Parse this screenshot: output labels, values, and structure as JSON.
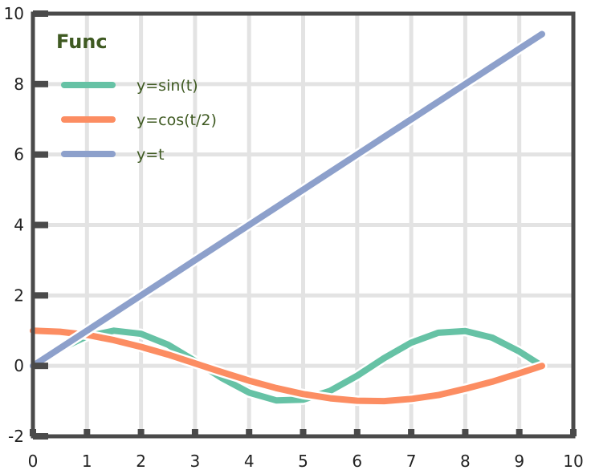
{
  "chart_data": {
    "type": "line",
    "title": "",
    "xlabel": "",
    "ylabel": "",
    "xlim": [
      0,
      10
    ],
    "ylim": [
      -2,
      10
    ],
    "xticks": [
      0,
      1,
      2,
      3,
      4,
      5,
      6,
      7,
      8,
      9,
      10
    ],
    "yticks": [
      -2,
      0,
      2,
      4,
      6,
      8,
      10
    ],
    "grid": true,
    "legend": {
      "title": "Func",
      "position": "top-left"
    },
    "x": [
      0,
      0.5,
      1,
      1.5,
      2,
      2.5,
      3,
      3.5,
      4,
      4.5,
      5,
      5.5,
      6,
      6.5,
      7,
      7.5,
      8,
      8.5,
      9,
      9.42
    ],
    "series": [
      {
        "name": "y=sin(t)",
        "color": "#66c2a5",
        "values": [
          0,
          0.48,
          0.84,
          1.0,
          0.91,
          0.6,
          0.14,
          -0.35,
          -0.76,
          -0.98,
          -0.96,
          -0.71,
          -0.28,
          0.22,
          0.66,
          0.94,
          0.99,
          0.8,
          0.41,
          0.0
        ]
      },
      {
        "name": "y=cos(t/2)",
        "color": "#fc8d62",
        "values": [
          1.0,
          0.97,
          0.88,
          0.73,
          0.54,
          0.32,
          0.07,
          -0.18,
          -0.42,
          -0.63,
          -0.8,
          -0.92,
          -0.99,
          -1.0,
          -0.94,
          -0.83,
          -0.65,
          -0.45,
          -0.21,
          0.0
        ]
      },
      {
        "name": "y=t",
        "color": "#8da0cb",
        "values": [
          0,
          0.5,
          1,
          1.5,
          2,
          2.5,
          3,
          3.5,
          4,
          4.5,
          5,
          5.5,
          6,
          6.5,
          7,
          7.5,
          8,
          8.5,
          9,
          9.42
        ]
      }
    ]
  }
}
